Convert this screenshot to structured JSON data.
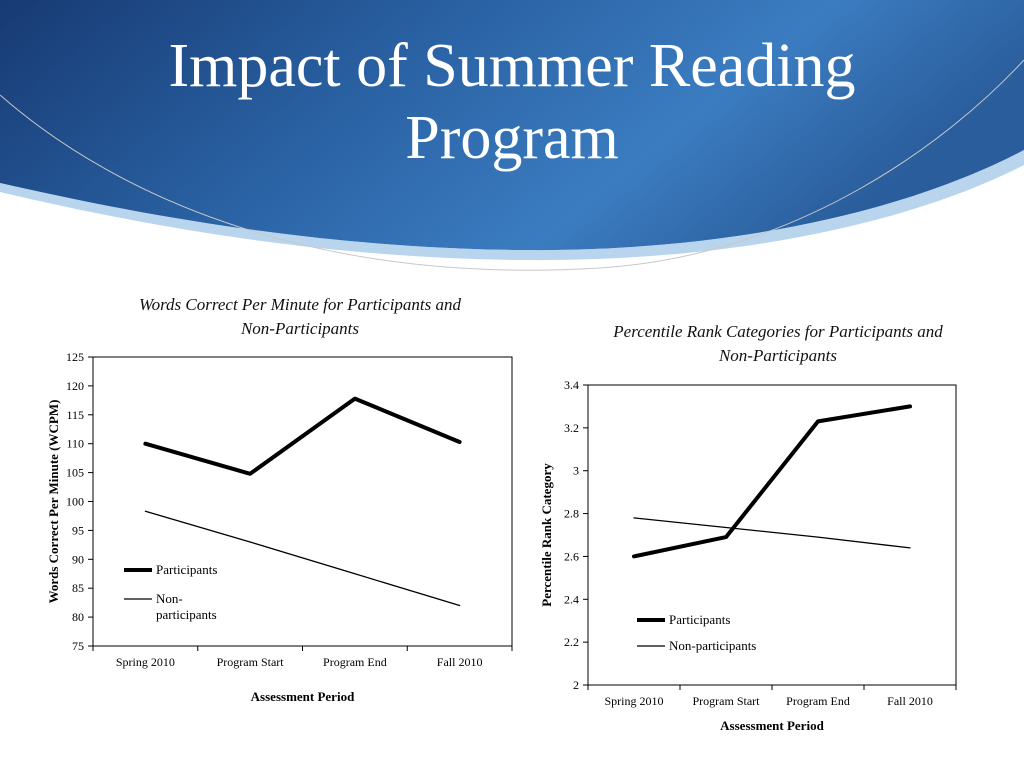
{
  "slide": {
    "title_line1": "Impact of Summer Reading",
    "title_line2": "Program"
  },
  "colors": {
    "header_dark": "#1a3f7a",
    "header_mid": "#2f6fb0",
    "header_light": "#5d9fd6",
    "line": "#000000"
  },
  "chart_data": [
    {
      "type": "line",
      "title_line1": "Words Correct Per Minute for Participants and",
      "title_line2": "Non-Participants",
      "xlabel": "Assessment Period",
      "ylabel": "Words Correct Per Minute (WCPM)",
      "categories": [
        "Spring 2010",
        "Program Start",
        "Program End",
        "Fall 2010"
      ],
      "ylim": [
        75,
        125
      ],
      "yticks": [
        "75",
        "80",
        "85",
        "90",
        "95",
        "100",
        "105",
        "110",
        "115",
        "120",
        "125"
      ],
      "legend_position": "bottom-left",
      "grid": false,
      "series": [
        {
          "name": "Participants",
          "values": [
            110,
            104.8,
            117.8,
            110.3
          ],
          "style": "thick"
        },
        {
          "name_line1": "Non-",
          "name_line2": "participants",
          "values": [
            98.3,
            93,
            87.5,
            82
          ],
          "style": "thin"
        }
      ]
    },
    {
      "type": "line",
      "title_line1": "Percentile Rank Categories for Participants and",
      "title_line2": "Non-Participants",
      "xlabel": "Assessment Period",
      "ylabel": "Percentile Rank Category",
      "categories": [
        "Spring 2010",
        "Program Start",
        "Program End",
        "Fall 2010"
      ],
      "ylim": [
        2,
        3.4
      ],
      "yticks": [
        "2",
        "2.2",
        "2.4",
        "2.6",
        "2.8",
        "3",
        "3.2",
        "3.4"
      ],
      "legend_position": "bottom-left",
      "grid": false,
      "series": [
        {
          "name": "Participants",
          "values": [
            2.6,
            2.69,
            3.23,
            3.3
          ],
          "style": "thick"
        },
        {
          "name": "Non-participants",
          "values": [
            2.78,
            2.735,
            2.69,
            2.64
          ],
          "style": "thin"
        }
      ]
    }
  ]
}
